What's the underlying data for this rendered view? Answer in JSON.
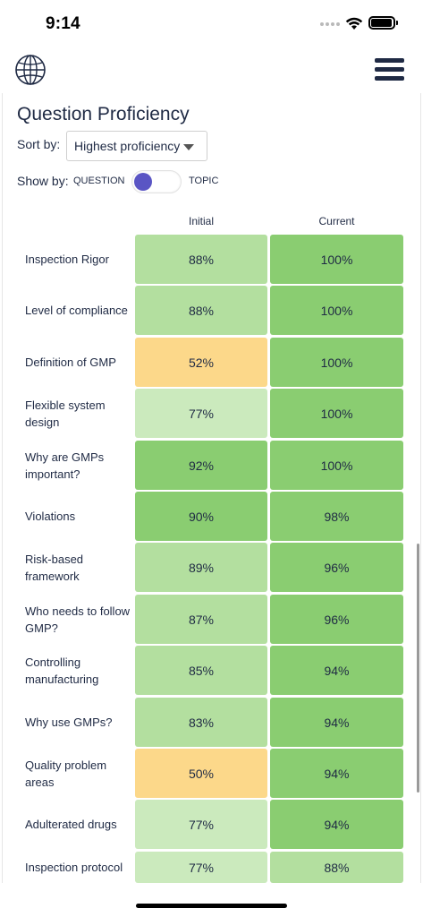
{
  "status_bar": {
    "time": "9:14"
  },
  "header": {
    "globe_icon": "globe-icon",
    "menu_icon": "hamburger-menu-icon"
  },
  "page": {
    "title": "Question Proficiency",
    "sort_label": "Sort by:",
    "sort_value": "Highest proficiency",
    "show_label": "Show by:",
    "toggle_left": "QUESTION",
    "toggle_right": "TOPIC",
    "toggle_state": "QUESTION"
  },
  "table": {
    "columns": [
      "Initial",
      "Current"
    ],
    "rows": [
      {
        "label": "Inspection Rigor",
        "initial": "88%",
        "current": "100%"
      },
      {
        "label": "Level of compliance",
        "initial": "88%",
        "current": "100%"
      },
      {
        "label": "Definition of GMP",
        "initial": "52%",
        "current": "100%"
      },
      {
        "label": "Flexible system design",
        "initial": "77%",
        "current": "100%"
      },
      {
        "label": "Why are GMPs important?",
        "initial": "92%",
        "current": "100%"
      },
      {
        "label": "Violations",
        "initial": "90%",
        "current": "98%"
      },
      {
        "label": "Risk-based framework",
        "initial": "89%",
        "current": "96%"
      },
      {
        "label": "Who needs to follow GMP?",
        "initial": "87%",
        "current": "96%"
      },
      {
        "label": "Controlling manufacturing",
        "initial": "85%",
        "current": "94%"
      },
      {
        "label": "Why use GMPs?",
        "initial": "83%",
        "current": "94%"
      },
      {
        "label": "Quality problem areas",
        "initial": "50%",
        "current": "94%"
      },
      {
        "label": "Adulterated drugs",
        "initial": "77%",
        "current": "94%"
      },
      {
        "label": "Inspection protocol",
        "initial": "77%",
        "current": "88%"
      }
    ]
  },
  "colors": {
    "text": "#1f2a44",
    "toggle_knob": "#5a55c4",
    "cell_high": "#8acd71",
    "cell_good": "#b3df9f",
    "cell_mid": "#cbeabd",
    "cell_low": "#fcd88a"
  }
}
